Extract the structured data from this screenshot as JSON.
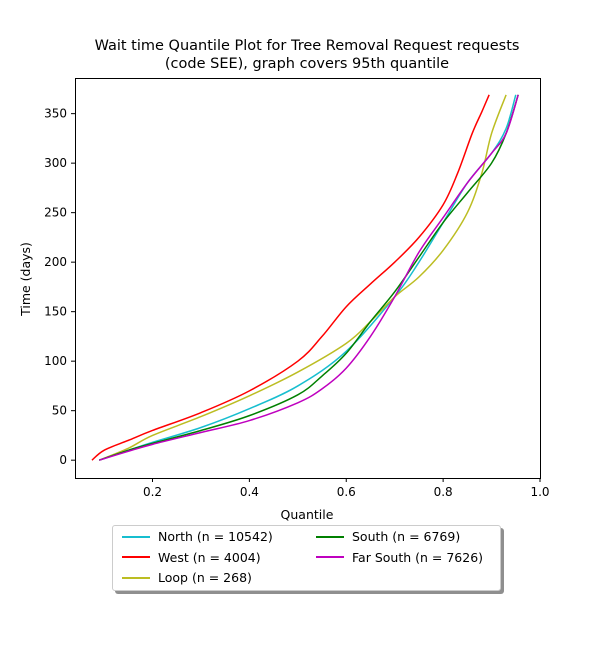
{
  "chart_data": {
    "type": "line",
    "title_lines": [
      "Wait time Quantile Plot for Tree Removal Request  requests",
      "(code SEE), graph covers 95th quantile"
    ],
    "xlabel": "Quantile",
    "ylabel": "Time (days)",
    "xlim": [
      0.04,
      1.0
    ],
    "ylim": [
      -18,
      386
    ],
    "xticks": [
      0.2,
      0.4,
      0.6,
      0.8,
      1.0
    ],
    "xtick_labels": [
      "0.2",
      "0.4",
      "0.6",
      "0.8",
      "1.0"
    ],
    "yticks": [
      0,
      50,
      100,
      150,
      200,
      250,
      300,
      350
    ],
    "ytick_labels": [
      "0",
      "50",
      "100",
      "150",
      "200",
      "250",
      "300",
      "350"
    ],
    "grid": false,
    "legend_placement": "below plot, two columns",
    "series": [
      {
        "name": "North (n = 10542)",
        "color": "#17becf",
        "x": [
          0.09,
          0.15,
          0.2,
          0.3,
          0.4,
          0.5,
          0.6,
          0.7,
          0.75,
          0.8,
          0.85,
          0.9,
          0.93,
          0.95
        ],
        "y": [
          0,
          10,
          18,
          33,
          52,
          75,
          110,
          165,
          200,
          240,
          280,
          310,
          335,
          369
        ]
      },
      {
        "name": "West (n = 4004)",
        "color": "#ff0000",
        "x": [
          0.075,
          0.1,
          0.15,
          0.2,
          0.3,
          0.4,
          0.5,
          0.55,
          0.6,
          0.65,
          0.7,
          0.75,
          0.8,
          0.83,
          0.86,
          0.88,
          0.895
        ],
        "y": [
          0,
          10,
          20,
          30,
          48,
          70,
          100,
          125,
          155,
          178,
          200,
          225,
          258,
          290,
          330,
          352,
          369
        ]
      },
      {
        "name": "Loop (n = 268)",
        "color": "#bcbd22",
        "x": [
          0.09,
          0.15,
          0.2,
          0.3,
          0.4,
          0.5,
          0.6,
          0.65,
          0.7,
          0.75,
          0.8,
          0.85,
          0.88,
          0.9,
          0.93
        ],
        "y": [
          0,
          12,
          25,
          44,
          65,
          89,
          118,
          140,
          165,
          185,
          212,
          250,
          290,
          330,
          369
        ]
      },
      {
        "name": "South (n = 6769)",
        "color": "#008000",
        "x": [
          0.09,
          0.15,
          0.2,
          0.3,
          0.4,
          0.5,
          0.55,
          0.6,
          0.65,
          0.7,
          0.75,
          0.8,
          0.85,
          0.9,
          0.93,
          0.955
        ],
        "y": [
          0,
          10,
          17,
          30,
          45,
          66,
          85,
          108,
          140,
          170,
          205,
          240,
          270,
          300,
          330,
          369
        ]
      },
      {
        "name": "Far South (n = 7626)",
        "color": "#bf00bf",
        "x": [
          0.09,
          0.15,
          0.2,
          0.3,
          0.4,
          0.5,
          0.55,
          0.6,
          0.65,
          0.7,
          0.75,
          0.8,
          0.85,
          0.9,
          0.93,
          0.955
        ],
        "y": [
          0,
          9,
          16,
          28,
          40,
          58,
          72,
          93,
          125,
          165,
          210,
          245,
          280,
          310,
          330,
          369
        ]
      }
    ]
  }
}
